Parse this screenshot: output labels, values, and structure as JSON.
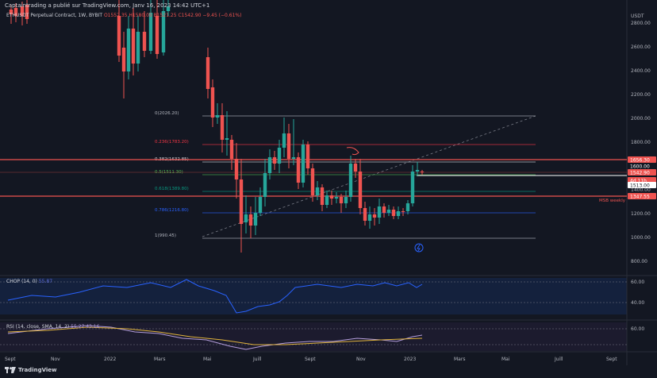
{
  "header": {
    "publisher": "Captaintrading a publié sur TradingView.com, Janv 16, 2023 14:42 UTC+1",
    "symbol": "ETHUSDT Perpetual Contract, 1W, BYBIT",
    "ohlc": "O1552.35 H1580.05 B1521.25 C1542.90 −9.45 (−0.61%)"
  },
  "axis": {
    "currency": "USDT",
    "price_ticks": [
      "2800.00",
      "2600.00",
      "2400.00",
      "2200.00",
      "2000.00",
      "1800.00",
      "1600.00",
      "1400.00",
      "1200.00",
      "1000.00",
      "800.00"
    ],
    "time_ticks": [
      "Sept",
      "Nov",
      "2022",
      "Mars",
      "Mai",
      "Juill",
      "Sept",
      "Nov",
      "2023",
      "Mars",
      "Mai",
      "Juill",
      "Sept"
    ],
    "chop_ticks": [
      "60.00",
      "40.00"
    ],
    "rsi_ticks": [
      "60.00"
    ]
  },
  "price_labels": [
    {
      "name": "level-1656",
      "text": "1656.30",
      "bg": "#ef5350"
    },
    {
      "name": "level-1600",
      "text": "1600.00",
      "bg": "#131722"
    },
    {
      "name": "current-price",
      "text": "1542.90",
      "bg": "#ef5350"
    },
    {
      "name": "countdown",
      "text": "4d 11h",
      "bg": "#ef5350"
    },
    {
      "name": "level-1513",
      "text": "1513.00",
      "bg": "#ffffff"
    },
    {
      "name": "level-1347",
      "text": "1347.55",
      "bg": "#ef5350"
    }
  ],
  "fib": [
    {
      "label": "0(2026.20)",
      "color": "#b2b5be"
    },
    {
      "label": "0.236(1783.20)",
      "color": "#f23645"
    },
    {
      "label": "0.382(1632.85)",
      "color": "#d1d4dc"
    },
    {
      "label": "0.5(1511.30)",
      "color": "#4caf50"
    },
    {
      "label": "0.618(1389.80)",
      "color": "#089981"
    },
    {
      "label": "0.786(1216.80)",
      "color": "#2962ff"
    },
    {
      "label": "1(990.45)",
      "color": "#b2b5be"
    }
  ],
  "annotation": {
    "msb": "MSB weekly"
  },
  "chop": {
    "label": "CHOP (14, 0)",
    "value": "55.87"
  },
  "rsi": {
    "label": "RSI (14, close, SMA, 14, 2)",
    "values": "55.27  43.16"
  },
  "brand": "TradingView",
  "colors": {
    "up": "#26a69a",
    "down": "#ef5350",
    "bg": "#131722"
  }
}
